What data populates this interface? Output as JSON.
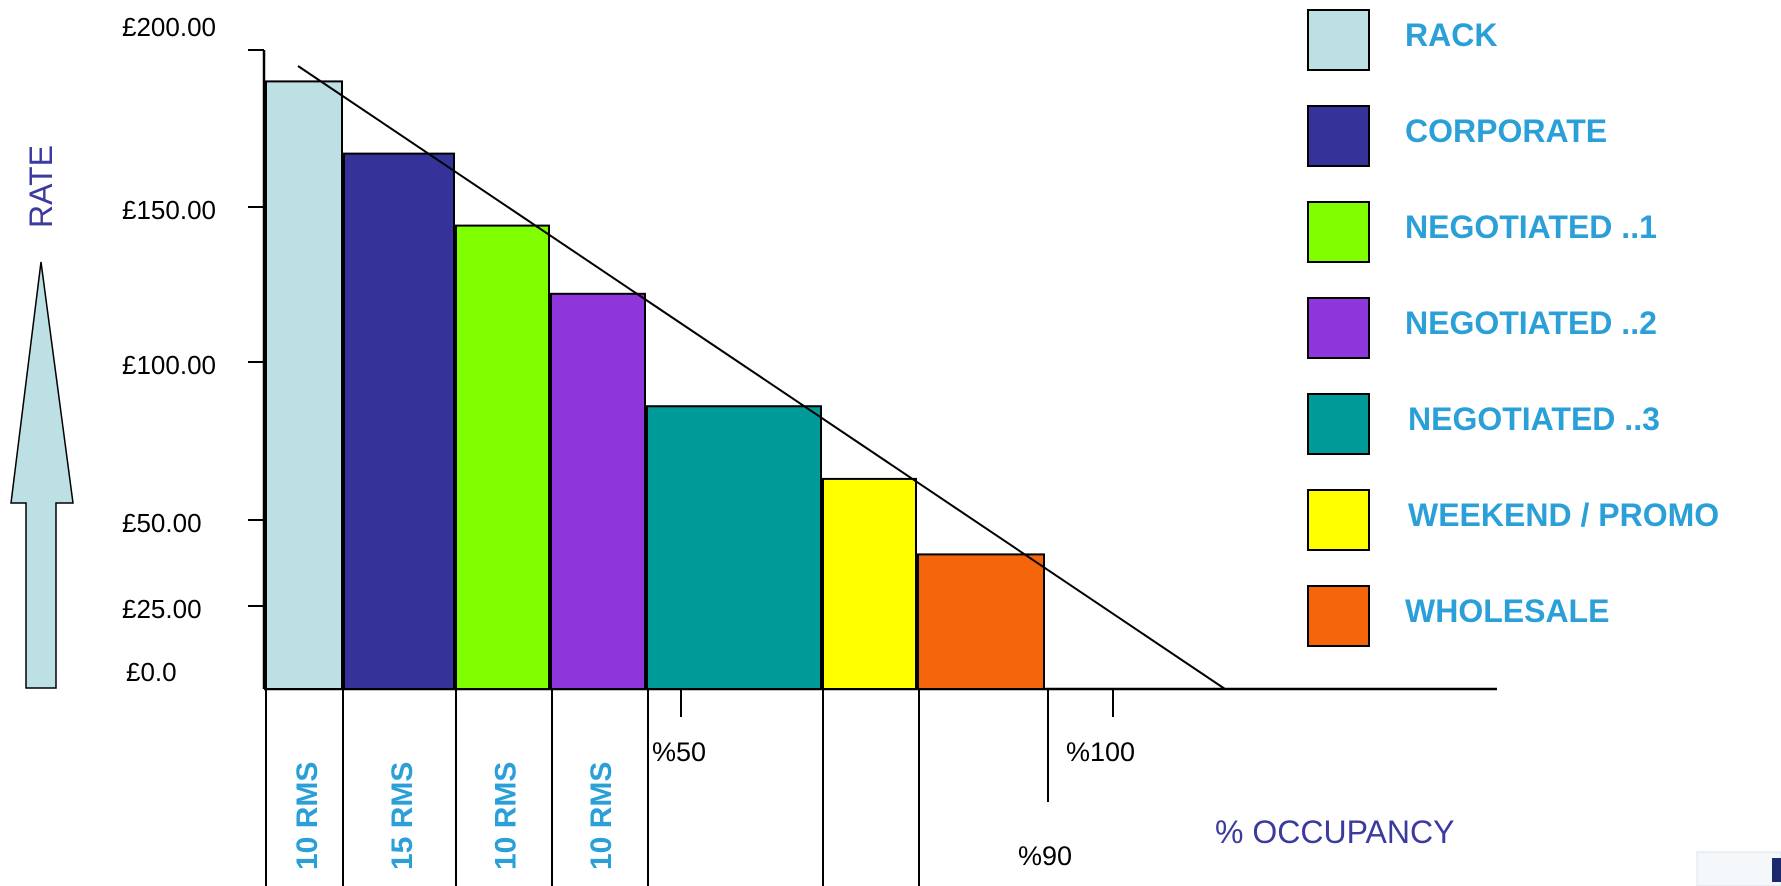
{
  "chart_data": {
    "type": "bar",
    "ylabel": "RATE",
    "xlabel": "% OCCUPANCY",
    "y_ticks": [
      {
        "value": 0,
        "label": "£0.0"
      },
      {
        "value": 25,
        "label": "£25.00"
      },
      {
        "value": 50,
        "label": "£50.00"
      },
      {
        "value": 100,
        "label": "£100.00"
      },
      {
        "value": 150,
        "label": "£150.00"
      },
      {
        "value": 200,
        "label": "£200.00"
      }
    ],
    "x_marks": [
      {
        "value": 50,
        "label": "%50"
      },
      {
        "value": 90,
        "label": "%90"
      },
      {
        "value": 100,
        "label": "%100"
      }
    ],
    "series": [
      {
        "name": "RACK",
        "value": 190,
        "rooms": "10 RMS",
        "color": "#bde0e4"
      },
      {
        "name": "CORPORATE",
        "value": 167,
        "rooms": "15 RMS",
        "color": "#35339a"
      },
      {
        "name": "NEGOTIATED ..1",
        "value": 144,
        "rooms": "10 RMS",
        "color": "#80ff00"
      },
      {
        "name": "NEGOTIATED ..2",
        "value": 122,
        "rooms": "10 RMS",
        "color": "#8f35dc"
      },
      {
        "name": "NEGOTIATED ..3",
        "value": 86,
        "rooms": "",
        "color": "#009b98"
      },
      {
        "name": "WEEKEND / PROMO",
        "value": 63,
        "rooms": "",
        "color": "#ffff00"
      },
      {
        "name": "WHOLESALE",
        "value": 40,
        "rooms": "",
        "color": "#f5650c"
      }
    ],
    "ylim": [
      0,
      200
    ],
    "legend_position": "right"
  }
}
